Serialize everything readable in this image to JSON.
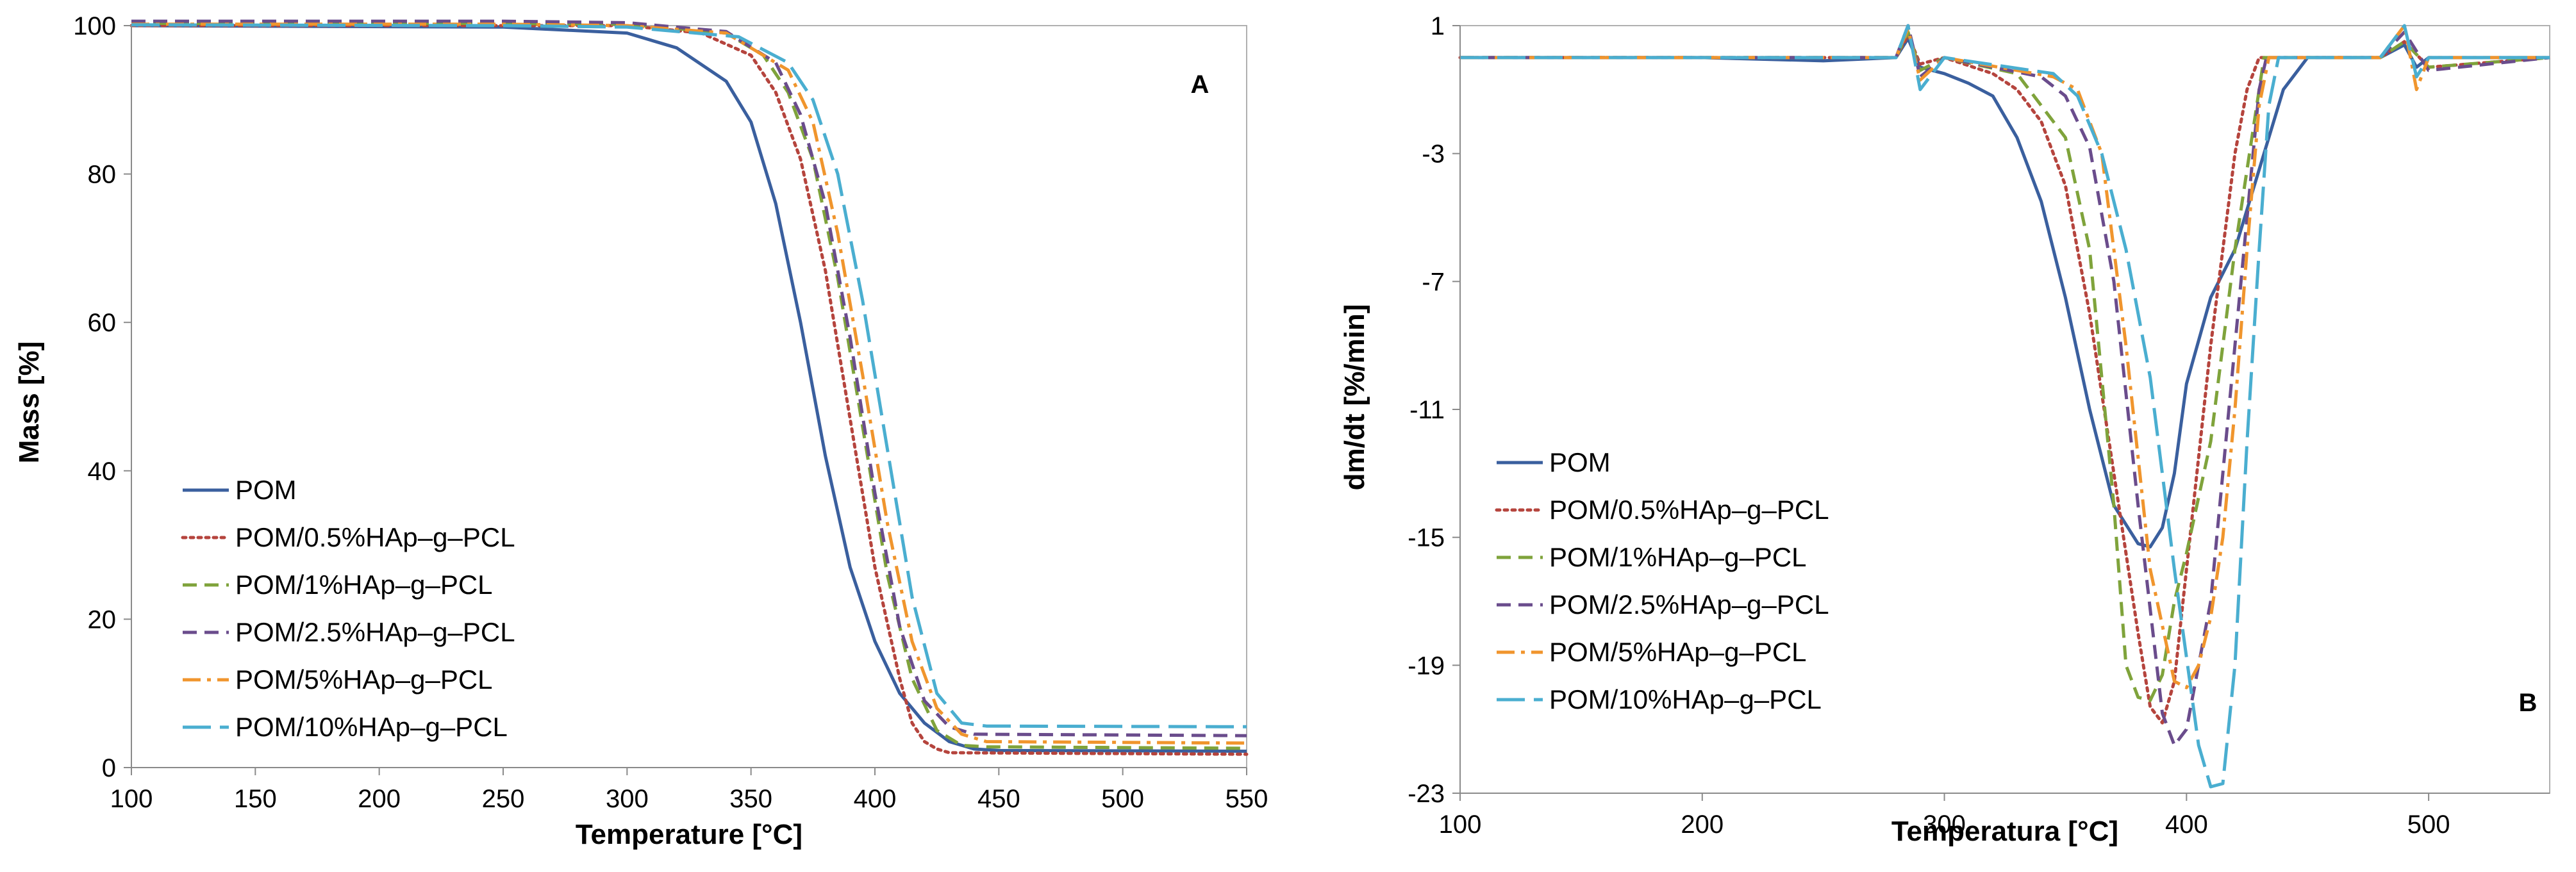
{
  "series_styles": [
    {
      "name": "POM",
      "color": "#3a5f9e",
      "dash": "none"
    },
    {
      "name": "POM/0.5%HAp–g–PCL",
      "color": "#b5443d",
      "dash": "dotted"
    },
    {
      "name": "POM/1%HAp–g–PCL",
      "color": "#7fa33b",
      "dash": "dashed"
    },
    {
      "name": "POM/2.5%HAp–g–PCL",
      "color": "#6a4c8c",
      "dash": "dashed"
    },
    {
      "name": "POM/5%HAp–g–PCL",
      "color": "#f0952d",
      "dash": "dashdot"
    },
    {
      "name": "POM/10%HAp–g–PCL",
      "color": "#4aaed0",
      "dash": "longdash"
    }
  ],
  "chart_data": [
    {
      "type": "line",
      "panel": "A",
      "title": "",
      "xlabel": "Temperature [°C]",
      "ylabel": "Mass [%]",
      "xlim": [
        100,
        550
      ],
      "ylim": [
        0,
        100
      ],
      "xticks": [
        "100",
        "150",
        "200",
        "250",
        "300",
        "350",
        "400",
        "450",
        "500",
        "550"
      ],
      "yticks": [
        "0",
        "20",
        "40",
        "60",
        "80",
        "100"
      ],
      "grid": false,
      "legend": "bottom-left",
      "series": [
        {
          "name": "POM",
          "x": [
            100,
            250,
            300,
            320,
            340,
            350,
            360,
            370,
            380,
            390,
            400,
            410,
            420,
            430,
            440,
            450,
            550
          ],
          "y": [
            100,
            99.8,
            99,
            97,
            92.5,
            87,
            76,
            60,
            42,
            27,
            17,
            10,
            6,
            3.5,
            2.5,
            2.3,
            2.2
          ]
        },
        {
          "name": "POM/0.5%HAp–g–PCL",
          "x": [
            100,
            250,
            300,
            330,
            350,
            360,
            370,
            380,
            390,
            400,
            410,
            415,
            420,
            425,
            430,
            550
          ],
          "y": [
            100,
            100,
            100,
            99,
            96,
            91,
            82,
            67,
            47,
            27,
            12,
            6,
            3.5,
            2.5,
            2,
            1.8
          ]
        },
        {
          "name": "POM/1%HAp–g–PCL",
          "x": [
            100,
            250,
            300,
            340,
            355,
            365,
            375,
            385,
            395,
            405,
            415,
            425,
            435,
            445,
            550
          ],
          "y": [
            100.3,
            100.3,
            100.2,
            99,
            96,
            91,
            82,
            66,
            46,
            26,
            12,
            5,
            3,
            2.8,
            2.6
          ]
        },
        {
          "name": "POM/2.5%HAp–g–PCL",
          "x": [
            100,
            250,
            300,
            340,
            360,
            370,
            380,
            390,
            400,
            410,
            420,
            430,
            440,
            550
          ],
          "y": [
            100.6,
            100.6,
            100.4,
            99.2,
            95,
            88,
            76,
            58,
            37,
            19,
            9,
            5.5,
            4.5,
            4.3
          ]
        },
        {
          "name": "POM/5%HAp–g–PCL",
          "x": [
            100,
            250,
            300,
            340,
            365,
            375,
            385,
            395,
            405,
            415,
            425,
            435,
            445,
            550
          ],
          "y": [
            100.2,
            100.2,
            100,
            99,
            94,
            87,
            72,
            53,
            33,
            17,
            8,
            4.5,
            3.5,
            3.3
          ]
        },
        {
          "name": "POM/10%HAp–g–PCL",
          "x": [
            100,
            250,
            300,
            345,
            365,
            375,
            385,
            395,
            405,
            415,
            425,
            435,
            445,
            550
          ],
          "y": [
            100.1,
            100,
            99.8,
            98.5,
            95,
            90,
            80,
            63,
            43,
            23,
            10,
            6,
            5.6,
            5.5
          ]
        }
      ]
    },
    {
      "type": "line",
      "panel": "B",
      "title": "",
      "xlabel": "Temperatura [°C]",
      "ylabel": "dm/dt [%/min]",
      "xlim": [
        100,
        550
      ],
      "ylim": [
        -23,
        1
      ],
      "xticks": [
        "100",
        "200",
        "300",
        "400",
        "500"
      ],
      "yticks": [
        "1",
        "-3",
        "-7",
        "-11",
        "-15",
        "-19",
        "-23"
      ],
      "grid": false,
      "legend": "bottom-left",
      "series": [
        {
          "name": "POM",
          "x": [
            100,
            200,
            250,
            280,
            285,
            290,
            300,
            310,
            320,
            330,
            340,
            350,
            360,
            370,
            380,
            385,
            390,
            395,
            400,
            410,
            420,
            430,
            440,
            450,
            480,
            490,
            495,
            500,
            550
          ],
          "y": [
            0,
            0,
            -0.1,
            0,
            0.6,
            -0.3,
            -0.5,
            -0.8,
            -1.2,
            -2.5,
            -4.5,
            -7.5,
            -11,
            -14,
            -15.2,
            -15.3,
            -14.7,
            -13,
            -10.2,
            -7.5,
            -6,
            -3.5,
            -1,
            0,
            0,
            0.4,
            -0.3,
            0,
            0
          ]
        },
        {
          "name": "POM/0.5%HAp–g–PCL",
          "x": [
            100,
            280,
            285,
            290,
            300,
            320,
            330,
            340,
            350,
            360,
            370,
            380,
            385,
            390,
            395,
            400,
            410,
            420,
            425,
            430,
            480,
            490,
            500,
            550
          ],
          "y": [
            0,
            0,
            0.7,
            -0.2,
            0,
            -0.5,
            -1,
            -2,
            -4,
            -8,
            -13,
            -18,
            -20.3,
            -20.8,
            -19.5,
            -16,
            -9,
            -3,
            -1,
            0,
            0,
            0.5,
            -0.3,
            0
          ]
        },
        {
          "name": "POM/1%HAp–g–PCL",
          "x": [
            100,
            280,
            285,
            290,
            300,
            330,
            340,
            350,
            360,
            370,
            375,
            380,
            385,
            390,
            395,
            400,
            410,
            420,
            430,
            432,
            480,
            490,
            500,
            550
          ],
          "y": [
            0,
            0,
            0.8,
            -0.4,
            0,
            -0.5,
            -1.5,
            -2.5,
            -6,
            -14,
            -19,
            -20,
            -20.1,
            -19.3,
            -17,
            -15.5,
            -12,
            -6,
            -1,
            0,
            0,
            0.5,
            -0.3,
            0
          ]
        },
        {
          "name": "POM/2.5%HAp–g–PCL",
          "x": [
            100,
            280,
            285,
            290,
            300,
            340,
            350,
            360,
            370,
            380,
            390,
            395,
            400,
            405,
            410,
            420,
            425,
            430,
            433,
            480,
            490,
            500,
            550
          ],
          "y": [
            0,
            0,
            1,
            -0.6,
            0,
            -0.6,
            -1.2,
            -2.8,
            -7,
            -14,
            -20.5,
            -21.5,
            -21,
            -19,
            -17,
            -9,
            -5,
            -1,
            0,
            0,
            0.8,
            -0.4,
            0
          ]
        },
        {
          "name": "POM/5%HAp–g–PCL",
          "x": [
            100,
            280,
            285,
            290,
            300,
            345,
            355,
            365,
            375,
            385,
            395,
            400,
            405,
            410,
            415,
            420,
            425,
            430,
            434,
            480,
            490,
            495,
            500,
            550
          ],
          "y": [
            0,
            0,
            0.9,
            -0.7,
            0,
            -0.6,
            -1,
            -3,
            -9,
            -16,
            -19.5,
            -19.7,
            -19,
            -17.5,
            -15,
            -11,
            -6,
            -1.5,
            0,
            0,
            1,
            -1,
            0,
            0
          ]
        },
        {
          "name": "POM/10%HAp–g–PCL",
          "x": [
            100,
            280,
            285,
            290,
            300,
            345,
            355,
            365,
            375,
            385,
            395,
            405,
            410,
            415,
            420,
            425,
            430,
            434,
            438,
            480,
            490,
            495,
            500,
            550
          ],
          "y": [
            0,
            0,
            1,
            -1,
            0,
            -0.5,
            -1.2,
            -3,
            -6,
            -10,
            -16,
            -21.5,
            -22.8,
            -22.7,
            -19,
            -12,
            -6,
            -1.5,
            0,
            0,
            1,
            -0.6,
            0,
            0
          ]
        }
      ]
    }
  ]
}
